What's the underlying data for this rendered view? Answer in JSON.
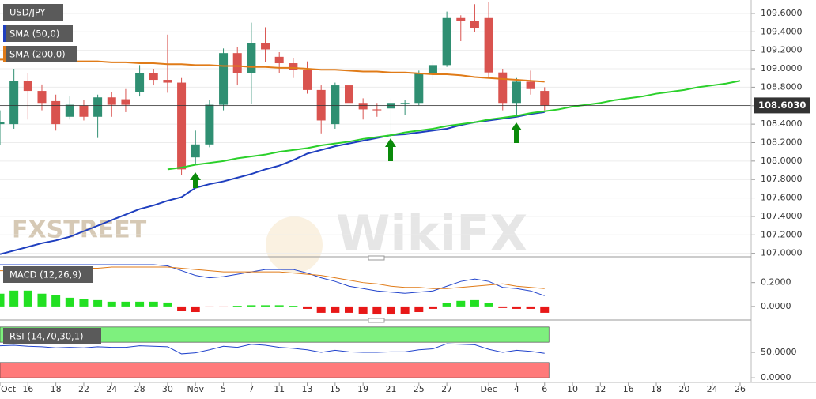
{
  "chart_data": {
    "type": "candlestick",
    "symbol": "USD/JPY",
    "categories": [
      "Oct",
      null,
      "16",
      null,
      "18",
      null,
      "22",
      null,
      "24",
      null,
      "28",
      null,
      "30",
      null,
      "Nov",
      null,
      "5",
      null,
      "7",
      null,
      "11",
      null,
      "13",
      null,
      "15",
      null,
      "19",
      null,
      "21",
      null,
      "25",
      null,
      "27",
      null,
      null,
      "Dec",
      null,
      "4",
      null,
      "6",
      null,
      "10",
      null,
      "12",
      null,
      "16",
      null,
      "18",
      null,
      "20",
      null,
      "24",
      null,
      "26"
    ],
    "open": [
      108.4,
      108.4,
      108.87,
      108.76,
      108.65,
      108.48,
      108.6,
      108.48,
      108.69,
      108.67,
      108.75,
      108.95,
      108.88,
      108.85,
      108.04,
      108.18,
      108.61,
      109.17,
      108.95,
      109.28,
      109.13,
      109.06,
      108.99,
      108.77,
      108.4,
      108.82,
      108.63,
      108.56,
      108.57,
      108.62,
      108.63,
      108.95,
      109.04,
      109.55,
      109.52,
      109.55,
      108.96,
      108.63,
      108.86,
      108.76,
      null,
      null,
      null,
      null,
      null,
      null,
      null,
      null,
      null,
      null,
      null,
      null,
      null,
      null
    ],
    "high": [
      108.55,
      109.0,
      108.95,
      108.83,
      108.72,
      108.7,
      108.66,
      108.72,
      108.75,
      108.78,
      109.04,
      109.0,
      109.37,
      108.9,
      108.33,
      108.66,
      109.22,
      109.24,
      109.5,
      109.45,
      109.18,
      109.12,
      109.08,
      108.82,
      108.85,
      108.99,
      108.68,
      108.63,
      108.68,
      108.66,
      108.98,
      109.08,
      109.62,
      109.58,
      109.7,
      109.72,
      109.0,
      108.9,
      108.98,
      108.8,
      null,
      null,
      null,
      null,
      null,
      null,
      null,
      null,
      null,
      null,
      null,
      null,
      null,
      null
    ],
    "low": [
      108.17,
      108.35,
      108.45,
      108.55,
      108.33,
      108.45,
      108.44,
      108.25,
      108.48,
      108.53,
      108.7,
      108.82,
      108.74,
      107.85,
      107.97,
      108.15,
      108.55,
      108.82,
      108.62,
      109.07,
      108.95,
      108.9,
      108.73,
      108.3,
      108.35,
      108.58,
      108.45,
      108.48,
      108.25,
      108.5,
      108.6,
      108.88,
      109.02,
      109.3,
      109.4,
      108.9,
      108.55,
      108.5,
      108.72,
      108.55,
      null,
      null,
      null,
      null,
      null,
      null,
      null,
      null,
      null,
      null,
      null,
      null,
      null,
      null
    ],
    "close": [
      108.42,
      108.87,
      108.76,
      108.63,
      108.4,
      108.61,
      108.48,
      108.69,
      108.61,
      108.61,
      108.95,
      108.88,
      108.85,
      107.91,
      108.18,
      108.61,
      109.17,
      108.95,
      109.28,
      109.21,
      109.06,
      108.99,
      108.77,
      108.44,
      108.82,
      108.63,
      108.56,
      108.55,
      108.63,
      108.63,
      108.95,
      109.04,
      109.55,
      109.52,
      109.44,
      108.96,
      108.63,
      108.86,
      108.78,
      108.6,
      null,
      null,
      null,
      null,
      null,
      null,
      null,
      null,
      null,
      null,
      null,
      null,
      null,
      null
    ],
    "up_color": "#2f8f72",
    "down_color": "#d9534f",
    "ylim": [
      106.98,
      109.745
    ],
    "yticks": [
      {
        "value": 107.0,
        "label": "107.0000"
      },
      {
        "value": 107.2,
        "label": "107.2000"
      },
      {
        "value": 107.4,
        "label": "107.4000"
      },
      {
        "value": 107.6,
        "label": "107.6000"
      },
      {
        "value": 107.8,
        "label": "107.8000"
      },
      {
        "value": 108.0,
        "label": "108.0000"
      },
      {
        "value": 108.2,
        "label": "108.2000"
      },
      {
        "value": 108.4,
        "label": "108.4000"
      },
      {
        "value": 108.6,
        "label": "108.6000"
      },
      {
        "value": 108.8,
        "label": "108.8000"
      },
      {
        "value": 109.0,
        "label": "109.0000"
      },
      {
        "value": 109.2,
        "label": "109.2000"
      },
      {
        "value": 109.4,
        "label": "109.4000"
      },
      {
        "value": 109.6,
        "label": "109.6000"
      }
    ],
    "grid": true,
    "last_price": {
      "value": 108.603,
      "label": "108.6030"
    },
    "overlays": [
      {
        "name": "SMA (50,0)",
        "color": "#1f3fbf",
        "values": [
          106.99,
          107.03,
          107.07,
          107.11,
          107.14,
          107.18,
          107.24,
          107.3,
          107.36,
          107.42,
          107.48,
          107.52,
          107.57,
          107.61,
          107.71,
          107.75,
          107.78,
          107.82,
          107.86,
          107.91,
          107.95,
          108.01,
          108.08,
          108.12,
          108.16,
          108.19,
          108.22,
          108.25,
          108.28,
          108.29,
          108.31,
          108.33,
          108.35,
          108.39,
          108.42,
          108.44,
          108.46,
          108.48,
          108.51,
          108.53,
          null,
          null,
          null,
          null,
          null,
          null,
          null,
          null,
          null,
          null,
          null,
          null,
          null,
          null
        ]
      },
      {
        "name": "SMA (200,0)",
        "color": "#e07b18",
        "values": [
          109.1,
          109.1,
          109.09,
          109.09,
          109.09,
          109.08,
          109.08,
          109.08,
          109.07,
          109.07,
          109.06,
          109.06,
          109.05,
          109.05,
          109.04,
          109.04,
          109.03,
          109.03,
          109.02,
          109.02,
          109.01,
          109.01,
          109.0,
          108.99,
          108.99,
          108.98,
          108.97,
          108.97,
          108.96,
          108.96,
          108.95,
          108.94,
          108.94,
          108.93,
          108.91,
          108.9,
          108.89,
          108.88,
          108.87,
          108.86,
          null,
          null,
          null,
          null,
          null,
          null,
          null,
          null,
          null,
          null,
          null,
          null,
          null,
          null
        ]
      },
      {
        "color": "#2bd02b",
        "values": [
          null,
          null,
          null,
          null,
          null,
          null,
          null,
          null,
          null,
          null,
          null,
          null,
          107.91,
          107.93,
          107.96,
          107.98,
          108.0,
          108.03,
          108.05,
          108.07,
          108.1,
          108.12,
          108.14,
          108.17,
          108.19,
          108.21,
          108.24,
          108.26,
          108.28,
          108.31,
          108.33,
          108.35,
          108.38,
          108.4,
          108.42,
          108.45,
          108.47,
          108.49,
          108.52,
          108.54,
          108.56,
          108.59,
          108.61,
          108.63,
          108.66,
          108.68,
          108.7,
          108.73,
          108.75,
          108.77,
          108.8,
          108.82,
          108.84,
          108.87
        ]
      }
    ],
    "watermarks": [
      "FXSTREET",
      "WikiFX"
    ],
    "macd": {
      "name": "MACD (12,26,9)",
      "ylim": [
        -0.08,
        0.37
      ],
      "yticks": [
        {
          "value": 0,
          "label": "0.0000"
        },
        {
          "value": 0.2,
          "label": "0.2000"
        }
      ],
      "histogram": {
        "positive_color": "#22e022",
        "negative_color": "#e81818",
        "values": [
          0.107,
          0.133,
          0.133,
          0.107,
          0.093,
          0.073,
          0.06,
          0.053,
          0.04,
          0.04,
          0.04,
          0.04,
          0.033,
          -0.04,
          -0.047,
          -0.007,
          -0.003,
          0.005,
          0.01,
          0.01,
          0.01,
          0.005,
          -0.02,
          -0.053,
          -0.053,
          -0.053,
          -0.06,
          -0.067,
          -0.067,
          -0.06,
          -0.047,
          -0.02,
          0.027,
          0.047,
          0.053,
          0.027,
          -0.013,
          -0.02,
          -0.02,
          -0.053,
          null,
          null,
          null,
          null,
          null,
          null,
          null,
          null,
          null,
          null,
          null,
          null,
          null,
          null
        ]
      },
      "lines": [
        {
          "color": "#2244cc",
          "values": [
            0.35,
            0.35,
            0.35,
            0.35,
            0.35,
            0.35,
            0.35,
            0.35,
            0.35,
            0.35,
            0.35,
            0.35,
            0.34,
            0.3,
            0.26,
            0.24,
            0.25,
            0.27,
            0.29,
            0.31,
            0.31,
            0.31,
            0.28,
            0.24,
            0.21,
            0.17,
            0.15,
            0.13,
            0.12,
            0.11,
            0.12,
            0.13,
            0.17,
            0.21,
            0.23,
            0.21,
            0.16,
            0.15,
            0.13,
            0.09,
            null,
            null,
            null,
            null,
            null,
            null,
            null,
            null,
            null,
            null,
            null,
            null,
            null,
            null
          ]
        },
        {
          "color": "#e07b18",
          "values": [
            0.3,
            0.3,
            0.31,
            0.31,
            0.31,
            0.32,
            0.32,
            0.32,
            0.33,
            0.33,
            0.33,
            0.33,
            0.33,
            0.32,
            0.31,
            0.3,
            0.29,
            0.29,
            0.29,
            0.29,
            0.29,
            0.28,
            0.27,
            0.26,
            0.24,
            0.22,
            0.2,
            0.19,
            0.17,
            0.16,
            0.16,
            0.15,
            0.15,
            0.16,
            0.17,
            0.18,
            0.19,
            0.17,
            0.16,
            0.15,
            null,
            null,
            null,
            null,
            null,
            null,
            null,
            null,
            null,
            null,
            null,
            null,
            null,
            null
          ]
        }
      ]
    },
    "rsi": {
      "name": "RSI (14,70,30,1)",
      "ylim": [
        -6,
        106
      ],
      "yticks": [
        {
          "value": 0,
          "label": "0.0000"
        },
        {
          "value": 50,
          "label": "50.0000"
        }
      ],
      "zones": [
        {
          "from": 70,
          "to": 100,
          "color": "#7ef07e"
        },
        {
          "from": 0,
          "to": 30,
          "color": "#ff7a7a"
        }
      ],
      "color": "#2244cc",
      "values": [
        63,
        64,
        62,
        61,
        59,
        60,
        59,
        61,
        60,
        60,
        63,
        62,
        61,
        47,
        49,
        55,
        62,
        60,
        66,
        64,
        60,
        58,
        55,
        50,
        54,
        51,
        50,
        50,
        51,
        51,
        55,
        57,
        67,
        66,
        65,
        56,
        50,
        54,
        52,
        48,
        null,
        null,
        null,
        null,
        null,
        null,
        null,
        null,
        null,
        null,
        null,
        null,
        null,
        null
      ]
    }
  }
}
